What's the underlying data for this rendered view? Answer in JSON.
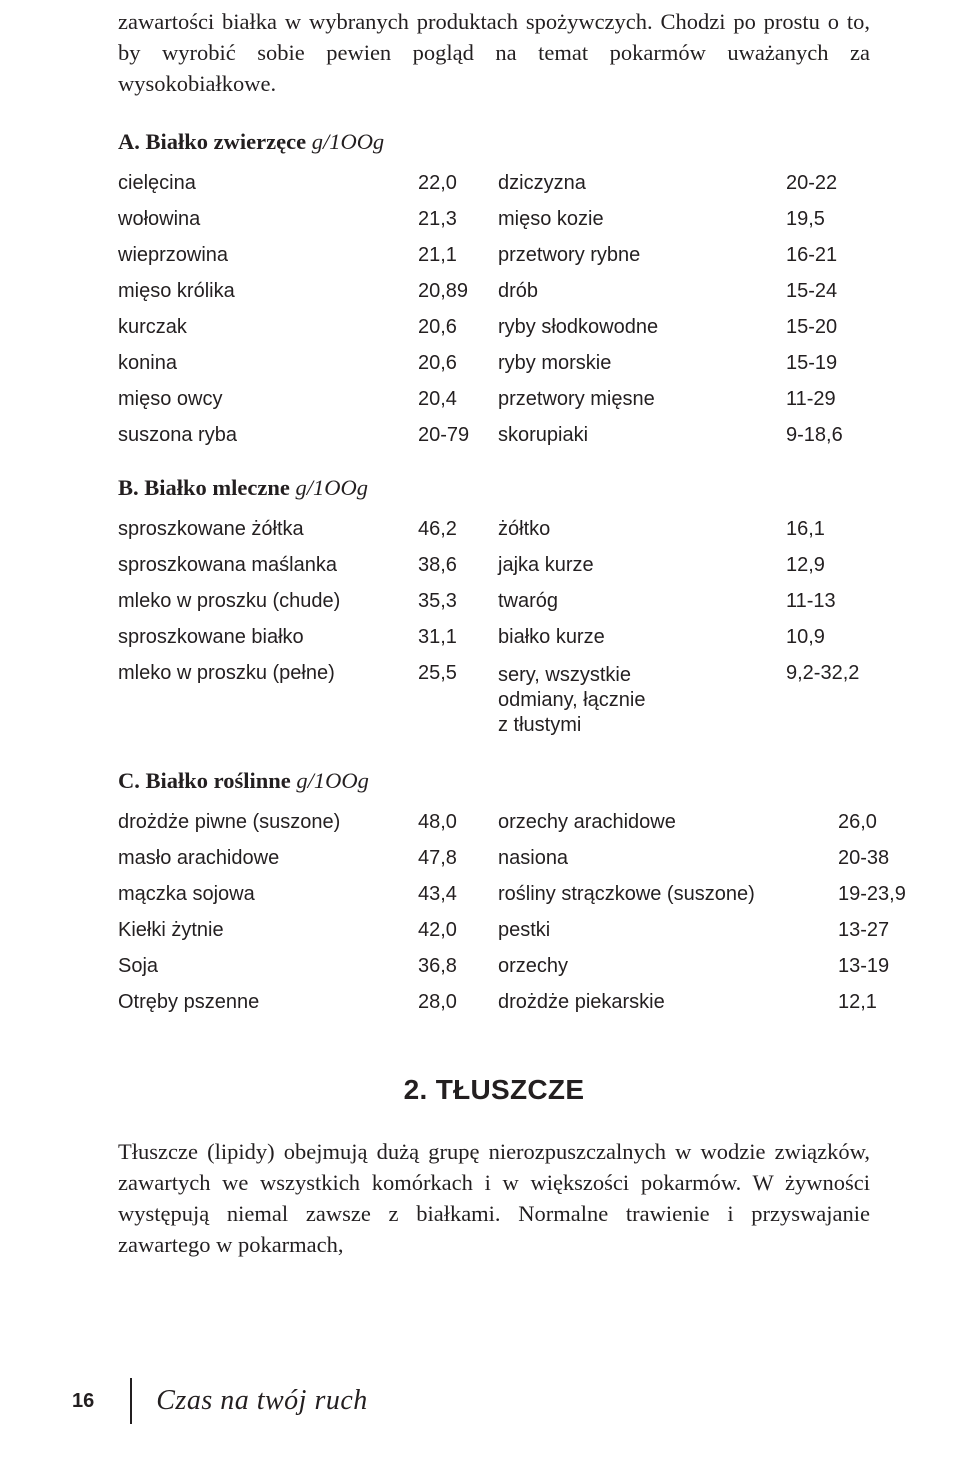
{
  "intro": "zawartości białka w wybranych produktach spożywczych. Chodzi po prostu o to, by wyrobić sobie pewien pogląd na temat pokarmów uważanych za wysokobiałkowe.",
  "sectionA": {
    "prefix": "A. Białko zwierzęce",
    "suffix": " g/1OOg"
  },
  "tableA": [
    [
      "cielęcina",
      "22,0",
      "dziczyzna",
      "20-22"
    ],
    [
      "wołowina",
      "21,3",
      "mięso kozie",
      "19,5"
    ],
    [
      "wieprzowina",
      "21,1",
      "przetwory rybne",
      "16-21"
    ],
    [
      "mięso królika",
      "20,89",
      "drób",
      "15-24"
    ],
    [
      "kurczak",
      "20,6",
      "ryby słodkowodne",
      "15-20"
    ],
    [
      "konina",
      "20,6",
      "ryby morskie",
      "15-19"
    ],
    [
      "mięso owcy",
      "20,4",
      "przetwory mięsne",
      "11-29"
    ],
    [
      "suszona ryba",
      "20-79",
      "skorupiaki",
      "9-18,6"
    ]
  ],
  "sectionB": {
    "prefix": "B. Białko mleczne",
    "suffix": " g/1OOg"
  },
  "tableB": [
    [
      "sproszkowane żółtka",
      "46,2",
      "żółtko",
      "16,1"
    ],
    [
      "sproszkowana maślanka",
      "38,6",
      "jajka kurze",
      "12,9"
    ],
    [
      "mleko w proszku (chude)",
      "35,3",
      "twaróg",
      "11-13"
    ],
    [
      "sproszkowane białko",
      "31,1",
      "białko kurze",
      "10,9"
    ],
    [
      "mleko w proszku (pełne)",
      "25,5",
      "sery, wszystkie\nodmiany, łącznie\nz tłustymi",
      "9,2-32,2"
    ]
  ],
  "sectionC": {
    "prefix": "C. Białko roślinne",
    "suffix": " g/1OOg"
  },
  "tableC": [
    [
      "drożdże piwne (suszone)",
      "48,0",
      "orzechy arachidowe",
      "26,0"
    ],
    [
      "masło arachidowe",
      "47,8",
      "nasiona",
      "20-38"
    ],
    [
      "mączka sojowa",
      "43,4",
      "rośliny strączkowe (suszone)",
      "19-23,9"
    ],
    [
      "Kiełki żytnie",
      "42,0",
      "pestki",
      "13-27"
    ],
    [
      "Soja",
      "36,8",
      "orzechy",
      "13-19"
    ],
    [
      "Otręby pszenne",
      "28,0",
      "drożdże piekarskie",
      "12,1"
    ]
  ],
  "chapter": "2. TŁUSZCZE",
  "para": "Tłuszcze (lipidy) obejmują dużą grupę nierozpuszczalnych w wodzie związków, zawartych we wszystkich komórkach i w większości pokarmów. W żywności występują niemal zawsze z białkami. Normalne trawienie i przyswajanie zawartego w pokarmach,",
  "pageNumber": "16",
  "footerTitle": "Czas na twój ruch"
}
